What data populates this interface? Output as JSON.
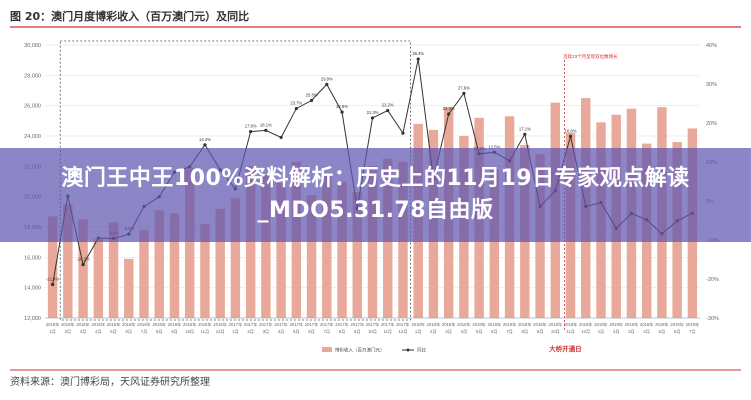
{
  "overlay_headline": "澳门王中王100%资料解析：历史上的11月19日专家观点解读_MDO5.31.78自由版",
  "source_note": "资料来源：澳门博彩局，天风证券研究所整理",
  "chart_data": {
    "type": "bar",
    "title": "图 20：澳门月度博彩收入（百万澳门元）及同比",
    "categories": [
      "2016年1月",
      "2016年2月",
      "2016年3月",
      "2016年4月",
      "2016年5月",
      "2016年6月",
      "2016年7月",
      "2016年8月",
      "2016年9月",
      "2016年10月",
      "2016年11月",
      "2016年12月",
      "2017年1月",
      "2017年2月",
      "2017年3月",
      "2017年4月",
      "2017年5月",
      "2017年6月",
      "2017年7月",
      "2017年8月",
      "2017年9月",
      "2017年10月",
      "2017年11月",
      "2017年12月",
      "2018年1月",
      "2018年2月",
      "2018年3月",
      "2018年4月",
      "2018年5月",
      "2018年6月",
      "2018年7月",
      "2018年8月",
      "2018年9月",
      "2018年10月",
      "2018年11月",
      "2018年12月",
      "2019年1月",
      "2019年2月",
      "2019年3月",
      "2019年4月",
      "2019年5月",
      "2019年6月",
      "2019年7月"
    ],
    "ylim_left": [
      12000,
      30000
    ],
    "yticks_left": [
      "12,000",
      "14,000",
      "16,000",
      "18,000",
      "20,000",
      "22,000",
      "24,000",
      "26,000",
      "28,000",
      "30,000"
    ],
    "ylim_right": [
      -30,
      40
    ],
    "yticks_right": [
      "-30%",
      "-20%",
      "-10%",
      "0%",
      "10%",
      "20%",
      "30%",
      "40%"
    ],
    "series": [
      {
        "name": "博彩收入（百万澳门元）",
        "type": "bar",
        "color": "#e9a99a",
        "values": [
          18700,
          19500,
          18500,
          17200,
          18300,
          15900,
          17800,
          19100,
          18900,
          21900,
          18200,
          19200,
          19900,
          22000,
          21400,
          20900,
          22300,
          20100,
          21500,
          21000,
          20300,
          22000,
          22500,
          22300,
          24800,
          24400,
          25900,
          24000,
          25200,
          21800,
          25300,
          23400,
          22800,
          26200,
          24200,
          26500,
          24900,
          25400,
          25800,
          23500,
          25900,
          23600,
          24500
        ]
      },
      {
        "name": "同比",
        "type": "line",
        "color": "#333333",
        "values": [
          -21.4,
          1.3,
          -16.3,
          -9.5,
          -9.6,
          -8.5,
          -1.4,
          1.1,
          7.4,
          8.8,
          14.4,
          8.0,
          3.1,
          17.8,
          18.1,
          16.3,
          23.7,
          25.8,
          29.9,
          22.8,
          -2.0,
          21.3,
          23.2,
          17.4,
          36.4,
          5.7,
          22.3,
          27.6,
          12.1,
          12.5,
          10.3,
          17.1,
          -1.4,
          2.6,
          16.6,
          -1.4,
          -0.4,
          -7.0,
          -3.2,
          -4.8,
          -8.4,
          -5.1,
          -3.1
        ]
      }
    ],
    "data_labels": [
      {
        "index": 0,
        "text": "-21.4%"
      },
      {
        "index": 2,
        "text": "-16.3%"
      },
      {
        "index": 4,
        "text": "-9.6%"
      },
      {
        "index": 5,
        "text": "-8.5%"
      },
      {
        "index": 10,
        "text": "14.4%"
      },
      {
        "index": 13,
        "text": "17.8%"
      },
      {
        "index": 14,
        "text": "18.1%"
      },
      {
        "index": 16,
        "text": "23.7%"
      },
      {
        "index": 17,
        "text": "25.8%"
      },
      {
        "index": 18,
        "text": "29.9%"
      },
      {
        "index": 19,
        "text": "22.8%"
      },
      {
        "index": 21,
        "text": "21.3%"
      },
      {
        "index": 22,
        "text": "23.2%"
      },
      {
        "index": 24,
        "text": "36.4%"
      },
      {
        "index": 26,
        "text": "22.3%"
      },
      {
        "index": 27,
        "text": "27.6%"
      },
      {
        "index": 28,
        "text": "12.1%"
      },
      {
        "index": 29,
        "text": "12.5%"
      },
      {
        "index": 31,
        "text": "17.1%"
      },
      {
        "index": 34,
        "text": "16.6%"
      }
    ],
    "annotation_box_label": "连续23个月呈现双位数增长",
    "annotation_bridge_label": "大桥开通日",
    "annotation_box_range": [
      1,
      23
    ],
    "annotation_bridge_index": 33.6,
    "legend": "bottom-center",
    "grid": true
  }
}
